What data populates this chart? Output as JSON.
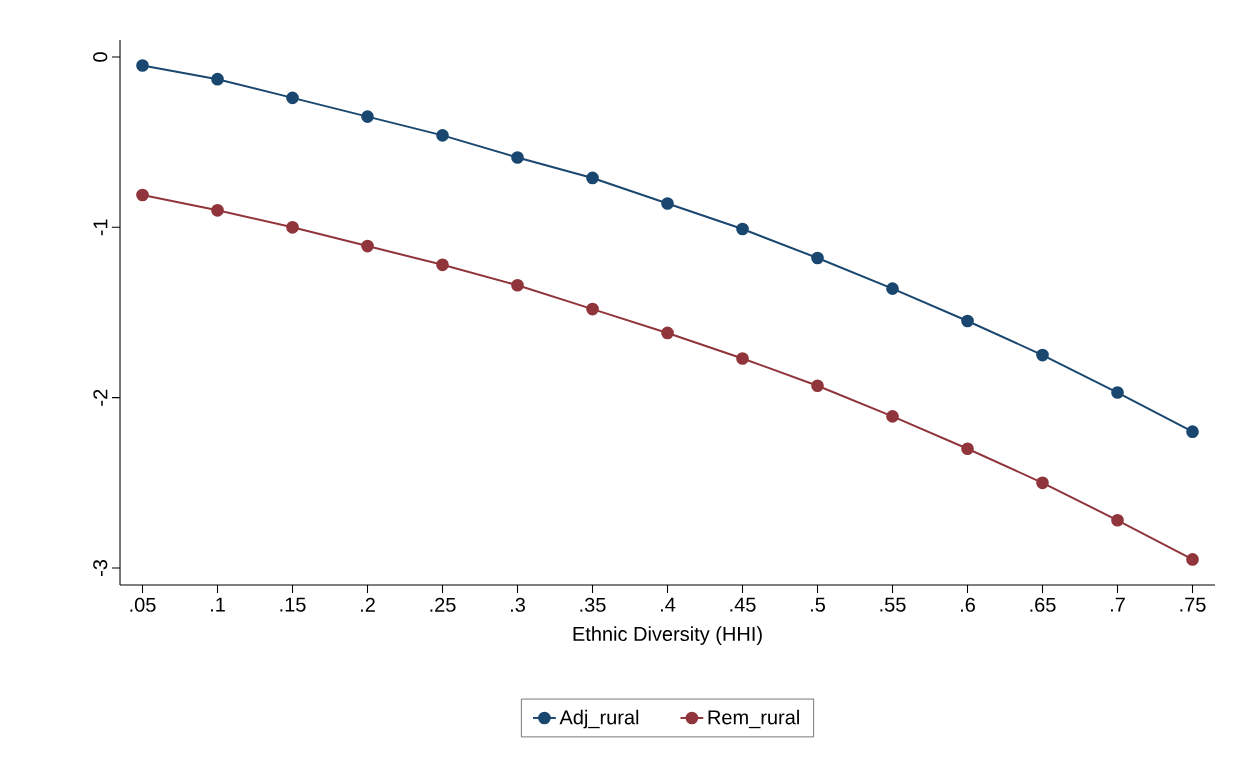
{
  "chart_data": {
    "type": "line",
    "xlabel": "Ethnic Diversity (HHI)",
    "x": [
      0.05,
      0.1,
      0.15,
      0.2,
      0.25,
      0.3,
      0.35,
      0.4,
      0.45,
      0.5,
      0.55,
      0.6,
      0.65,
      0.7,
      0.75
    ],
    "series": [
      {
        "name": "Adj_rural",
        "color": "#1a476f",
        "values": [
          -0.05,
          -0.13,
          -0.24,
          -0.35,
          -0.46,
          -0.59,
          -0.71,
          -0.86,
          -1.01,
          -1.18,
          -1.36,
          -1.55,
          -1.75,
          -1.97,
          -2.2
        ]
      },
      {
        "name": "Rem_rural",
        "color": "#90353b",
        "values": [
          -0.81,
          -0.9,
          -1.0,
          -1.11,
          -1.22,
          -1.34,
          -1.48,
          -1.62,
          -1.77,
          -1.93,
          -2.11,
          -2.3,
          -2.5,
          -2.72,
          -2.95
        ]
      }
    ],
    "xlim": [
      0.035,
      0.765
    ],
    "ylim": [
      -3.1,
      0.1
    ],
    "xticks": [
      {
        "value": 0.05,
        "label": ".05"
      },
      {
        "value": 0.1,
        "label": ".1"
      },
      {
        "value": 0.15,
        "label": ".15"
      },
      {
        "value": 0.2,
        "label": ".2"
      },
      {
        "value": 0.25,
        "label": ".25"
      },
      {
        "value": 0.3,
        "label": ".3"
      },
      {
        "value": 0.35,
        "label": ".35"
      },
      {
        "value": 0.4,
        "label": ".4"
      },
      {
        "value": 0.45,
        "label": ".45"
      },
      {
        "value": 0.5,
        "label": ".5"
      },
      {
        "value": 0.55,
        "label": ".55"
      },
      {
        "value": 0.6,
        "label": ".6"
      },
      {
        "value": 0.65,
        "label": ".65"
      },
      {
        "value": 0.7,
        "label": ".7"
      },
      {
        "value": 0.75,
        "label": ".75"
      }
    ],
    "yticks": [
      0,
      -1,
      -2,
      -3
    ],
    "grid": false,
    "legend": "bottom",
    "marker": "circle",
    "line_style": "solid"
  }
}
